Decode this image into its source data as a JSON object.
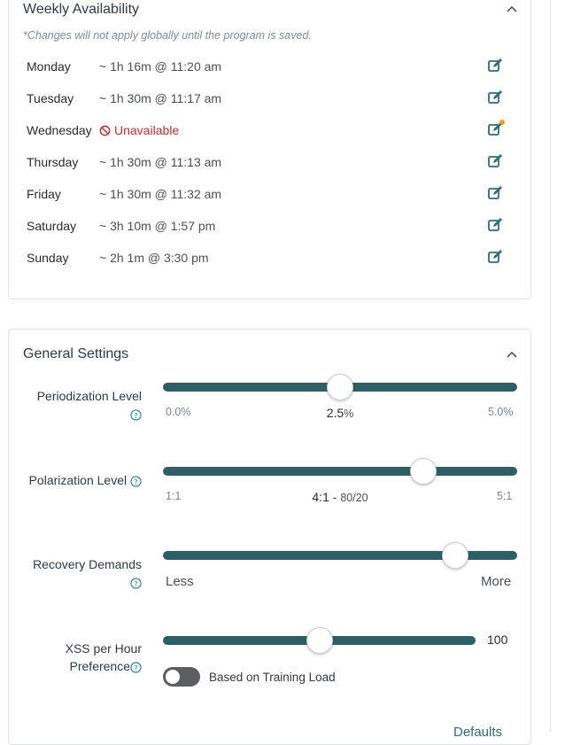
{
  "availability": {
    "title": "Weekly Availability",
    "note": "*Changes will not apply globally until the program is saved.",
    "days": [
      {
        "day": "Monday",
        "value": "~ 1h 16m @ 11:20 am"
      },
      {
        "day": "Tuesday",
        "value": "~ 1h 30m @ 11:17 am"
      },
      {
        "day": "Wednesday",
        "value": "Unavailable"
      },
      {
        "day": "Thursday",
        "value": "~ 1h 30m @ 11:13 am"
      },
      {
        "day": "Friday",
        "value": "~ 1h 30m @ 11:32 am"
      },
      {
        "day": "Saturday",
        "value": "~ 3h 10m @ 1:57 pm"
      },
      {
        "day": "Sunday",
        "value": "~ 2h 1m @ 3:30 pm"
      }
    ]
  },
  "general": {
    "title": "General Settings",
    "periodization": {
      "label_line1": "Periodization Level",
      "min": "0.0%",
      "max": "5.0%",
      "value": "2.5",
      "unit": "%",
      "fraction": 0.5
    },
    "polarization": {
      "label": "Polarization Level",
      "min": "1:1",
      "max": "5:1",
      "value": "4:1",
      "sep": " - ",
      "detail": "80/20",
      "fraction": 0.735
    },
    "recovery": {
      "label": "Recovery Demands",
      "min": "Less",
      "max": "More",
      "fraction": 0.825
    },
    "xss": {
      "label_line1": "XSS per Hour",
      "label_line2": "Preference",
      "value": "100",
      "fraction": 0.5,
      "toggle_label": "Based on Training Load",
      "toggle_on": false
    },
    "defaults_link": "Defaults"
  },
  "colors": {
    "accent": "#2d5f66",
    "unavailable": "#d0292b",
    "notice_dot": "#f39c12"
  }
}
